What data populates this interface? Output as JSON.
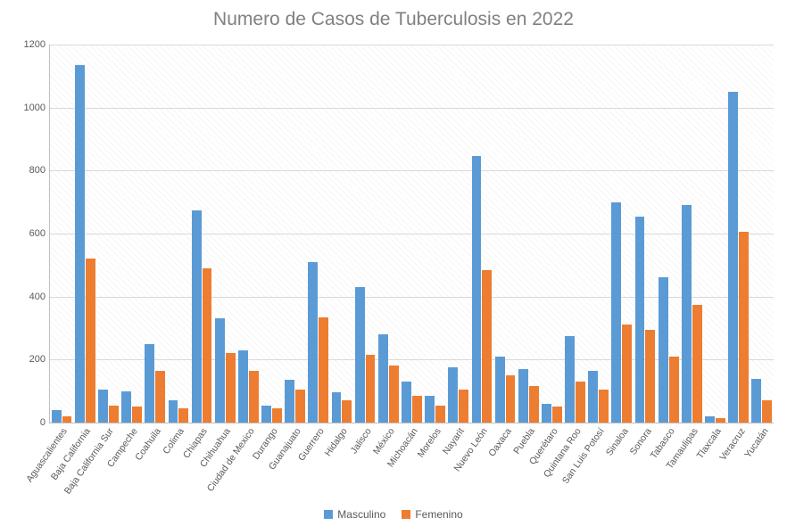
{
  "chart": {
    "type": "bar",
    "title": "Numero de Casos de Tuberculosis en 2022",
    "title_fontsize": 21,
    "title_color": "#808080",
    "background_color": "#ffffff",
    "grid_color": "#d9d9d9",
    "axis_label_color": "#595959",
    "axis_label_fontsize": 11,
    "ylim": [
      0,
      1200
    ],
    "ytick_step": 200,
    "yticks": [
      0,
      200,
      400,
      600,
      800,
      1000,
      1200
    ],
    "x_label_rotation_deg": -55,
    "categories": [
      "Aguascalientes",
      "Baja California",
      "Baja California Sur",
      "Campeche",
      "Coahuila",
      "Colima",
      "Chiapas",
      "Chihuahua",
      "Ciudad de Mexico",
      "Durango",
      "Guanajuato",
      "Guerrero",
      "Hidalgo",
      "Jalisco",
      "México",
      "Michoacán",
      "Morelos",
      "Nayarit",
      "Nuevo León",
      "Oaxaca",
      "Puebla",
      "Querétaro",
      "Quintana Roo",
      "San Luis Potosí",
      "Sinaloa",
      "Sonora",
      "Tabasco",
      "Tamaulipas",
      "Tlaxcala",
      "Veracruz",
      "Yucatán"
    ],
    "series": [
      {
        "name": "Masculino",
        "color": "#5b9bd5",
        "values": [
          40,
          1135,
          105,
          100,
          250,
          70,
          675,
          330,
          230,
          55,
          135,
          510,
          95,
          430,
          280,
          130,
          85,
          175,
          845,
          210,
          170,
          60,
          275,
          165,
          700,
          655,
          460,
          690,
          20,
          1050,
          140
        ]
      },
      {
        "name": "Femenino",
        "color": "#ed7d31",
        "values": [
          20,
          520,
          55,
          50,
          165,
          45,
          490,
          220,
          165,
          45,
          105,
          335,
          70,
          215,
          180,
          85,
          55,
          105,
          485,
          150,
          115,
          50,
          130,
          105,
          310,
          295,
          210,
          375,
          15,
          605,
          70
        ]
      }
    ],
    "legend": {
      "position": "bottom",
      "items": [
        "Masculino",
        "Femenino"
      ]
    }
  }
}
